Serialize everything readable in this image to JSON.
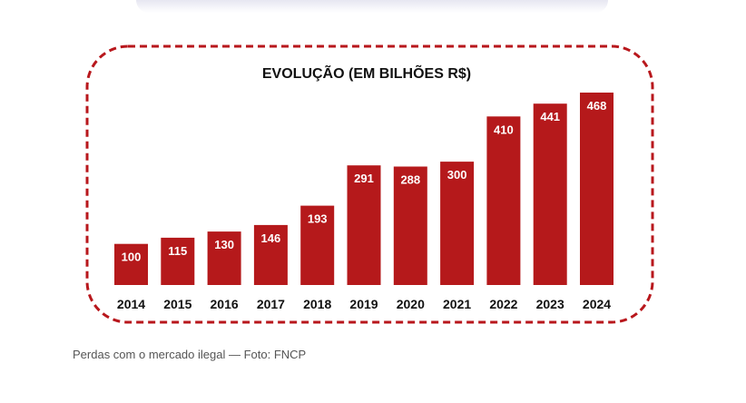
{
  "caption": "Perdas com o mercado ilegal — Foto: FNCP",
  "colors": {
    "bar": "#b5191b",
    "frame": "#b8171c",
    "label_inside": "#ffffff",
    "axis_text": "#111111"
  },
  "chart_data": {
    "type": "bar",
    "title": "EVOLUÇÃO (EM BILHÕES R$)",
    "xlabel": "",
    "ylabel": "",
    "categories": [
      "2014",
      "2015",
      "2016",
      "2017",
      "2018",
      "2019",
      "2020",
      "2021",
      "2022",
      "2023",
      "2024"
    ],
    "values": [
      100,
      115,
      130,
      146,
      193,
      291,
      288,
      300,
      410,
      441,
      468
    ],
    "ylim": [
      0,
      468
    ],
    "grid": false,
    "legend": "none"
  }
}
